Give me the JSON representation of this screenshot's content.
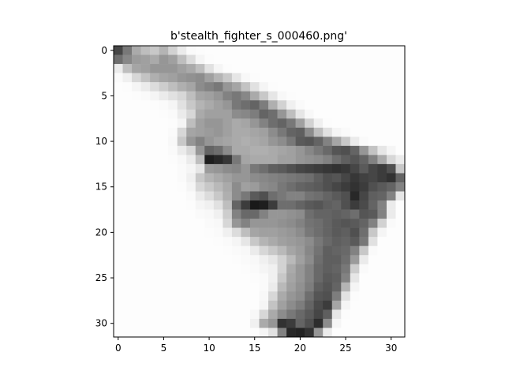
{
  "chart_data": {
    "type": "heatmap",
    "title": "b'stealth_fighter_s_000460.png'",
    "xlabel": "",
    "ylabel": "",
    "x_ticks": [
      0,
      5,
      10,
      15,
      20,
      25,
      30
    ],
    "y_ticks": [
      0,
      5,
      10,
      15,
      20,
      25,
      30
    ],
    "x_tick_labels": [
      "0",
      "5",
      "10",
      "15",
      "20",
      "25",
      "30"
    ],
    "y_tick_labels": [
      "0",
      "5",
      "10",
      "15",
      "20",
      "25",
      "30"
    ],
    "rows": 32,
    "cols": 32,
    "colormap": "gray",
    "grid": false,
    "legend": "none",
    "description_grayscale": "32x32 grayscale image of a stealth fighter; values 0-255, 255 = white",
    "values": [
      [
        70,
        120,
        170,
        190,
        200,
        180,
        210,
        235,
        250,
        252,
        253,
        253,
        253,
        253,
        253,
        253,
        253,
        253,
        253,
        253,
        253,
        253,
        253,
        253,
        253,
        253,
        253,
        253,
        253,
        253,
        253,
        253
      ],
      [
        110,
        135,
        155,
        160,
        170,
        150,
        160,
        190,
        220,
        245,
        252,
        253,
        253,
        253,
        253,
        253,
        253,
        253,
        253,
        253,
        253,
        253,
        253,
        253,
        253,
        253,
        253,
        253,
        253,
        253,
        253,
        253
      ],
      [
        235,
        190,
        165,
        160,
        150,
        150,
        150,
        160,
        170,
        190,
        225,
        245,
        252,
        253,
        253,
        253,
        253,
        253,
        253,
        253,
        253,
        253,
        253,
        253,
        253,
        253,
        253,
        253,
        253,
        253,
        253,
        253
      ],
      [
        250,
        240,
        215,
        195,
        175,
        165,
        160,
        150,
        145,
        140,
        160,
        180,
        200,
        230,
        248,
        252,
        253,
        253,
        253,
        253,
        253,
        253,
        253,
        253,
        253,
        253,
        253,
        253,
        253,
        253,
        253,
        253
      ],
      [
        253,
        252,
        245,
        235,
        220,
        205,
        190,
        175,
        165,
        140,
        130,
        120,
        150,
        165,
        195,
        225,
        245,
        252,
        253,
        253,
        253,
        253,
        253,
        253,
        253,
        253,
        253,
        253,
        253,
        253,
        253,
        253
      ],
      [
        253,
        253,
        252,
        250,
        245,
        235,
        225,
        215,
        190,
        165,
        160,
        150,
        130,
        120,
        135,
        170,
        200,
        230,
        248,
        252,
        253,
        253,
        253,
        253,
        253,
        253,
        253,
        253,
        253,
        253,
        253,
        253
      ],
      [
        253,
        253,
        253,
        253,
        252,
        250,
        245,
        225,
        200,
        180,
        170,
        160,
        150,
        120,
        110,
        100,
        125,
        175,
        210,
        240,
        250,
        253,
        253,
        253,
        253,
        253,
        253,
        253,
        253,
        253,
        253,
        253
      ],
      [
        253,
        253,
        253,
        253,
        253,
        252,
        250,
        235,
        215,
        170,
        160,
        160,
        160,
        140,
        135,
        125,
        100,
        110,
        150,
        190,
        230,
        248,
        253,
        253,
        253,
        253,
        253,
        253,
        253,
        253,
        253,
        253
      ],
      [
        253,
        253,
        253,
        253,
        253,
        253,
        252,
        245,
        190,
        160,
        150,
        150,
        160,
        170,
        165,
        150,
        130,
        110,
        100,
        120,
        160,
        210,
        240,
        252,
        253,
        253,
        253,
        253,
        253,
        253,
        253,
        253
      ],
      [
        253,
        253,
        253,
        253,
        253,
        253,
        250,
        215,
        165,
        160,
        155,
        150,
        160,
        170,
        170,
        165,
        160,
        140,
        120,
        100,
        95,
        140,
        190,
        225,
        245,
        250,
        253,
        253,
        253,
        253,
        253,
        253
      ],
      [
        253,
        253,
        253,
        253,
        253,
        253,
        248,
        200,
        150,
        130,
        150,
        160,
        165,
        170,
        175,
        170,
        165,
        150,
        140,
        120,
        90,
        85,
        100,
        130,
        165,
        200,
        235,
        250,
        253,
        253,
        253,
        253
      ],
      [
        253,
        253,
        253,
        253,
        253,
        253,
        250,
        235,
        215,
        150,
        100,
        110,
        140,
        170,
        170,
        175,
        175,
        170,
        165,
        160,
        150,
        135,
        120,
        105,
        85,
        80,
        100,
        150,
        195,
        230,
        245,
        253
      ],
      [
        253,
        253,
        253,
        253,
        253,
        253,
        252,
        248,
        235,
        190,
        30,
        40,
        55,
        120,
        165,
        170,
        170,
        170,
        160,
        160,
        150,
        145,
        140,
        130,
        110,
        95,
        85,
        100,
        130,
        170,
        215,
        235
      ],
      [
        253,
        253,
        253,
        253,
        253,
        253,
        253,
        250,
        245,
        230,
        155,
        150,
        140,
        135,
        150,
        120,
        110,
        95,
        90,
        80,
        70,
        65,
        60,
        55,
        50,
        55,
        70,
        90,
        70,
        60,
        80,
        200
      ],
      [
        253,
        253,
        253,
        253,
        253,
        253,
        253,
        250,
        240,
        200,
        180,
        170,
        160,
        150,
        150,
        140,
        135,
        130,
        125,
        120,
        115,
        110,
        95,
        80,
        85,
        70,
        55,
        65,
        70,
        60,
        50,
        100
      ],
      [
        253,
        253,
        253,
        253,
        253,
        253,
        253,
        252,
        245,
        215,
        200,
        185,
        170,
        140,
        160,
        155,
        140,
        135,
        120,
        110,
        100,
        95,
        90,
        80,
        70,
        60,
        50,
        60,
        80,
        90,
        100,
        130
      ],
      [
        253,
        253,
        253,
        253,
        253,
        253,
        253,
        253,
        250,
        235,
        220,
        200,
        175,
        140,
        120,
        90,
        80,
        110,
        120,
        130,
        130,
        115,
        110,
        100,
        90,
        80,
        40,
        70,
        95,
        100,
        130,
        230
      ],
      [
        253,
        253,
        253,
        253,
        253,
        253,
        253,
        253,
        252,
        245,
        240,
        225,
        190,
        100,
        60,
        25,
        30,
        60,
        110,
        110,
        100,
        90,
        85,
        95,
        100,
        80,
        60,
        75,
        100,
        130,
        235,
        253
      ],
      [
        253,
        253,
        253,
        253,
        253,
        253,
        253,
        253,
        253,
        250,
        248,
        240,
        205,
        130,
        105,
        105,
        130,
        150,
        150,
        145,
        140,
        110,
        100,
        100,
        95,
        100,
        110,
        85,
        90,
        130,
        235,
        253
      ],
      [
        253,
        253,
        253,
        253,
        253,
        253,
        253,
        253,
        253,
        253,
        250,
        248,
        215,
        150,
        130,
        150,
        150,
        150,
        145,
        140,
        130,
        115,
        110,
        100,
        90,
        85,
        90,
        100,
        130,
        210,
        250,
        253
      ],
      [
        253,
        253,
        253,
        253,
        253,
        253,
        253,
        253,
        253,
        253,
        252,
        250,
        240,
        220,
        190,
        165,
        160,
        160,
        155,
        150,
        140,
        120,
        110,
        100,
        90,
        95,
        80,
        110,
        200,
        245,
        253,
        253
      ],
      [
        253,
        253,
        253,
        253,
        253,
        253,
        253,
        253,
        253,
        253,
        253,
        252,
        250,
        245,
        230,
        200,
        180,
        170,
        160,
        155,
        150,
        140,
        120,
        105,
        95,
        100,
        90,
        120,
        225,
        253,
        253,
        253
      ],
      [
        253,
        253,
        253,
        253,
        253,
        253,
        253,
        253,
        253,
        253,
        253,
        253,
        252,
        250,
        248,
        235,
        215,
        200,
        185,
        165,
        155,
        135,
        115,
        95,
        100,
        105,
        130,
        200,
        250,
        253,
        253,
        253
      ],
      [
        253,
        253,
        253,
        253,
        253,
        253,
        253,
        253,
        253,
        253,
        253,
        253,
        253,
        252,
        250,
        248,
        240,
        230,
        210,
        185,
        160,
        140,
        110,
        95,
        95,
        110,
        155,
        235,
        253,
        253,
        253,
        253
      ],
      [
        253,
        253,
        253,
        253,
        253,
        253,
        253,
        253,
        253,
        253,
        253,
        253,
        253,
        253,
        252,
        250,
        245,
        240,
        210,
        170,
        150,
        130,
        105,
        95,
        100,
        120,
        205,
        250,
        253,
        253,
        253,
        253
      ],
      [
        253,
        253,
        253,
        253,
        253,
        253,
        253,
        253,
        253,
        253,
        253,
        253,
        253,
        253,
        253,
        252,
        250,
        240,
        200,
        165,
        150,
        130,
        105,
        90,
        95,
        130,
        230,
        253,
        253,
        253,
        253,
        253
      ],
      [
        253,
        253,
        253,
        253,
        253,
        253,
        253,
        253,
        253,
        253,
        253,
        253,
        253,
        253,
        253,
        253,
        250,
        235,
        185,
        160,
        145,
        125,
        95,
        85,
        100,
        180,
        245,
        253,
        253,
        253,
        253,
        253
      ],
      [
        253,
        253,
        253,
        253,
        253,
        253,
        253,
        253,
        253,
        253,
        253,
        253,
        253,
        253,
        253,
        253,
        248,
        215,
        170,
        150,
        140,
        110,
        85,
        80,
        125,
        225,
        252,
        253,
        253,
        253,
        253,
        253
      ],
      [
        253,
        253,
        253,
        253,
        253,
        253,
        253,
        253,
        253,
        253,
        253,
        253,
        253,
        253,
        253,
        253,
        245,
        195,
        160,
        140,
        125,
        100,
        75,
        60,
        165,
        245,
        253,
        253,
        253,
        253,
        253,
        253
      ],
      [
        253,
        253,
        253,
        253,
        253,
        253,
        253,
        253,
        253,
        253,
        253,
        253,
        253,
        253,
        253,
        248,
        215,
        170,
        140,
        120,
        105,
        90,
        70,
        95,
        230,
        252,
        253,
        253,
        253,
        253,
        253,
        253
      ],
      [
        253,
        253,
        253,
        253,
        253,
        253,
        253,
        253,
        253,
        253,
        253,
        253,
        253,
        253,
        253,
        240,
        170,
        150,
        50,
        60,
        100,
        80,
        45,
        140,
        245,
        253,
        253,
        253,
        253,
        253,
        253,
        253
      ],
      [
        253,
        253,
        253,
        253,
        253,
        253,
        253,
        253,
        253,
        253,
        253,
        253,
        253,
        253,
        253,
        252,
        245,
        225,
        130,
        40,
        35,
        50,
        150,
        235,
        253,
        253,
        253,
        253,
        253,
        253,
        253,
        253
      ]
    ]
  }
}
